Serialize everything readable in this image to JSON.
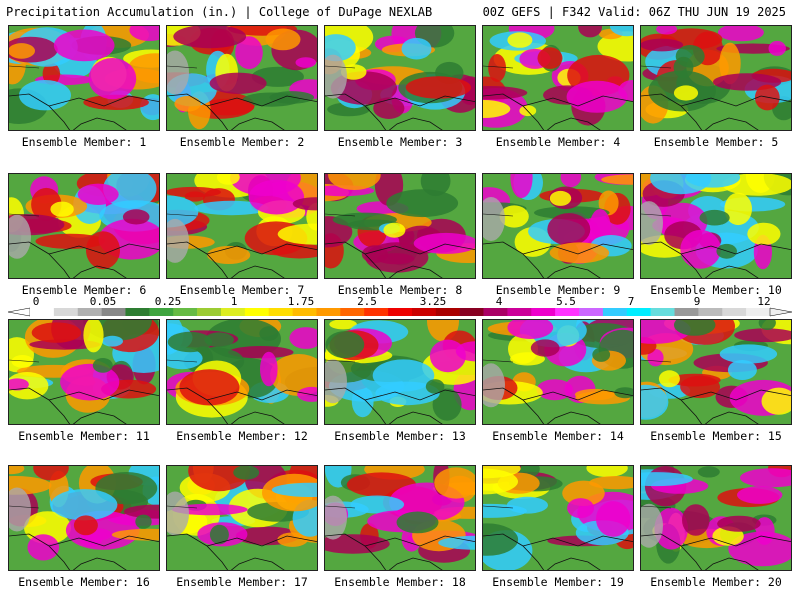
{
  "header": {
    "left": "Precipitation Accumulation (in.) | College of DuPage NEXLAB",
    "right": "00Z GEFS | F342 Valid: 06Z THU JUN 19 2025"
  },
  "members": [
    "Ensemble Member: 1",
    "Ensemble Member: 2",
    "Ensemble Member: 3",
    "Ensemble Member: 4",
    "Ensemble Member: 5",
    "Ensemble Member: 6",
    "Ensemble Member: 7",
    "Ensemble Member: 8",
    "Ensemble Member: 9",
    "Ensemble Member: 10",
    "Ensemble Member: 11",
    "Ensemble Member: 12",
    "Ensemble Member: 13",
    "Ensemble Member: 14",
    "Ensemble Member: 15",
    "Ensemble Member: 16",
    "Ensemble Member: 17",
    "Ensemble Member: 18",
    "Ensemble Member: 19",
    "Ensemble Member: 20"
  ],
  "colorbar": {
    "labels": [
      "0",
      "0.05",
      "0.25",
      "1",
      "1.75",
      "2.5",
      "3.25",
      "4",
      "5.5",
      "7",
      "9",
      "12"
    ],
    "colors": [
      "#ffffff",
      "#d8d8d8",
      "#b0b0b0",
      "#888888",
      "#2e7d32",
      "#3fa53f",
      "#66bb44",
      "#9ccc33",
      "#ddee22",
      "#ffff00",
      "#ffdd00",
      "#ffbb00",
      "#ff9900",
      "#ff6600",
      "#ff3300",
      "#ee0000",
      "#cc0000",
      "#aa0000",
      "#880022",
      "#aa0066",
      "#cc0099",
      "#ee00cc",
      "#ff33ff",
      "#cc66ff",
      "#33ccff",
      "#00eeff",
      "#66dddd",
      "#999999",
      "#bbbbbb",
      "#d8d8d8",
      "#eeeeee"
    ]
  }
}
